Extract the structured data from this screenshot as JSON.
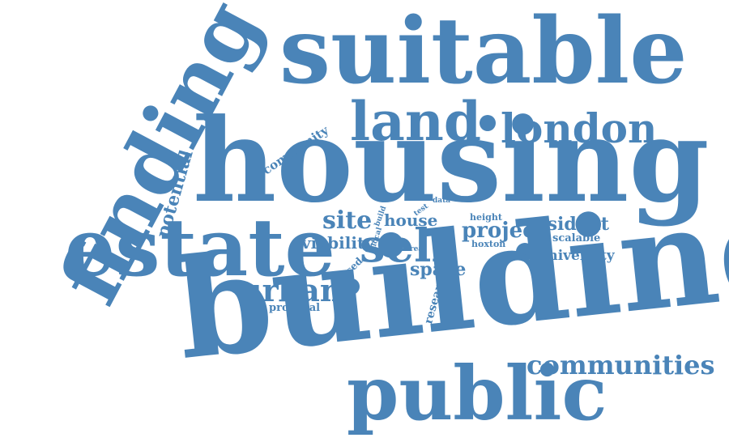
{
  "color": "#4a84b8",
  "words": {
    "suitable": "suitable",
    "finding": "finding",
    "land": "land",
    "london": "london",
    "housing": "housing",
    "estate": "estate",
    "building": "building",
    "public": "public",
    "self": "self",
    "site": "site",
    "house": "house",
    "project": "project",
    "resident": "resident",
    "scalable": "scalable",
    "viability": "viability",
    "urban": "urban",
    "space": "space",
    "university": "university",
    "communities": "communities",
    "community": "community",
    "potential": "potential",
    "unused": "unused",
    "proposal": "proposal",
    "research": "research",
    "height": "height",
    "hoxton": "hoxton",
    "data": "data",
    "build": "build",
    "local": "local",
    "test": "test",
    "area": "area"
  }
}
